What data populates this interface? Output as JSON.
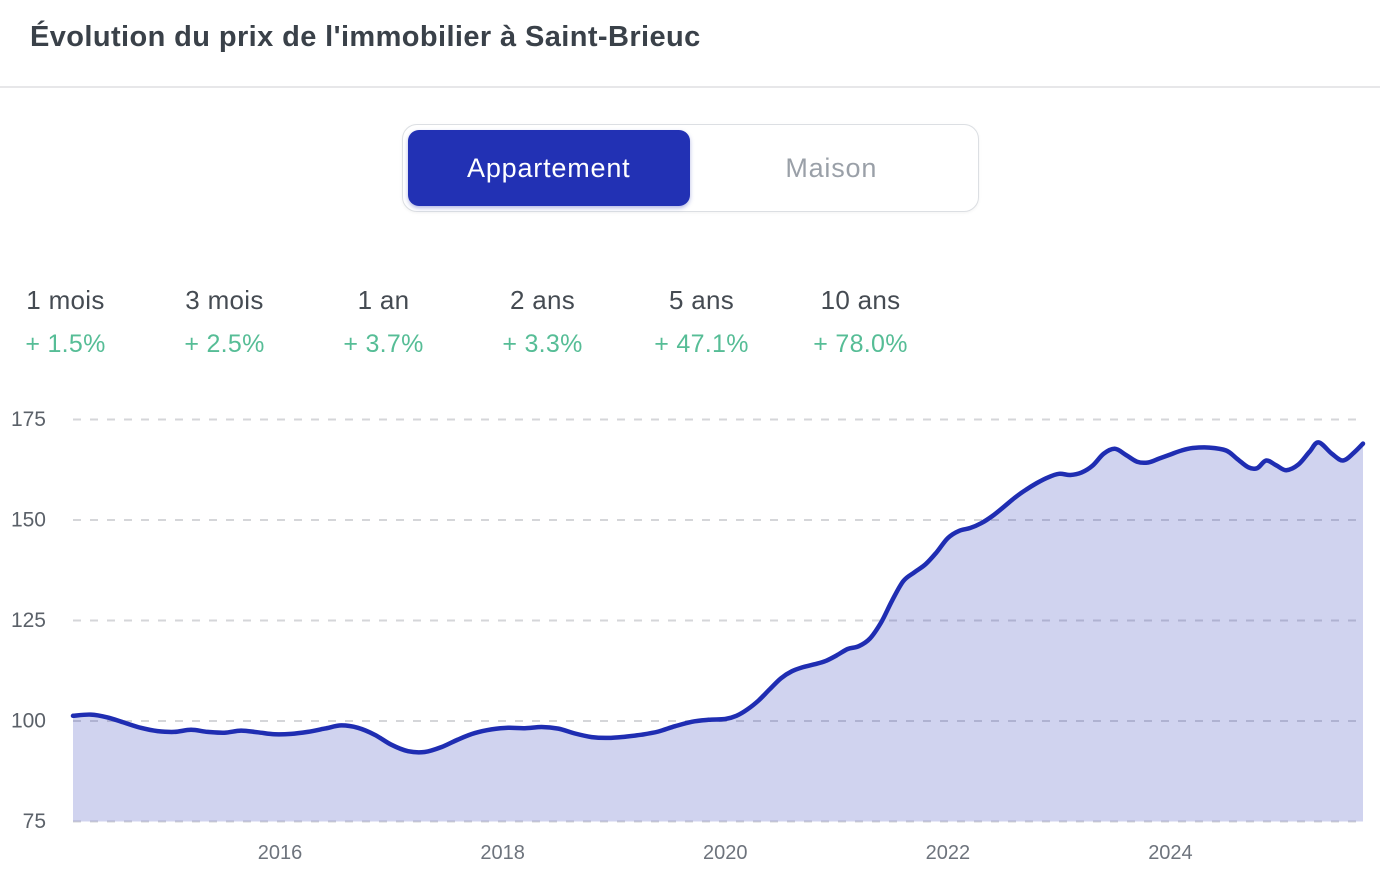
{
  "header": {
    "title": "Évolution du prix de l'immobilier à Saint-Brieuc"
  },
  "toggle": {
    "options": [
      {
        "label": "Appartement",
        "selected": true
      },
      {
        "label": "Maison",
        "selected": false
      }
    ],
    "selected_color": "#2231b4"
  },
  "stats": {
    "items": [
      {
        "label": "1 mois",
        "value": "+ 1.5%"
      },
      {
        "label": "3 mois",
        "value": "+ 2.5%"
      },
      {
        "label": "1 an",
        "value": "+ 3.7%"
      },
      {
        "label": "2 ans",
        "value": "+ 3.3%"
      },
      {
        "label": "5 ans",
        "value": "+ 47.1%"
      },
      {
        "label": "10 ans",
        "value": "+ 78.0%"
      }
    ],
    "value_color": "#56bd96"
  },
  "chart_data": {
    "type": "area",
    "title": "Évolution du prix de l'immobilier à Saint-Brieuc — Appartement (indice de prix)",
    "xlabel": "",
    "ylabel": "",
    "xlim": [
      2014.14,
      2025.73
    ],
    "ylim": [
      75,
      175
    ],
    "yticks": [
      75,
      100,
      125,
      150,
      175
    ],
    "xticks": [
      2016,
      2018,
      2020,
      2022,
      2024
    ],
    "grid": "horizontal-dashed",
    "legend": "none",
    "line_color": "#1f2db2",
    "fill_color": "rgba(31,45,178,0.21)",
    "grid_color": "#d5d6d9",
    "x": [
      2014.14,
      2014.3,
      2014.45,
      2014.6,
      2014.75,
      2014.9,
      2015.05,
      2015.2,
      2015.35,
      2015.5,
      2015.65,
      2015.8,
      2015.95,
      2016.1,
      2016.25,
      2016.4,
      2016.55,
      2016.7,
      2016.85,
      2017.0,
      2017.15,
      2017.3,
      2017.45,
      2017.6,
      2017.75,
      2017.9,
      2018.05,
      2018.2,
      2018.35,
      2018.5,
      2018.65,
      2018.8,
      2018.95,
      2019.1,
      2019.25,
      2019.4,
      2019.55,
      2019.7,
      2019.85,
      2020.0,
      2020.1,
      2020.2,
      2020.3,
      2020.4,
      2020.5,
      2020.6,
      2020.7,
      2020.8,
      2020.9,
      2021.0,
      2021.1,
      2021.2,
      2021.3,
      2021.4,
      2021.5,
      2021.6,
      2021.7,
      2021.8,
      2021.9,
      2022.0,
      2022.1,
      2022.2,
      2022.3,
      2022.4,
      2022.5,
      2022.6,
      2022.7,
      2022.8,
      2022.9,
      2023.0,
      2023.1,
      2023.2,
      2023.3,
      2023.4,
      2023.5,
      2023.6,
      2023.7,
      2023.8,
      2023.9,
      2024.0,
      2024.1,
      2024.2,
      2024.35,
      2024.5,
      2024.6,
      2024.7,
      2024.78,
      2024.86,
      2024.95,
      2025.04,
      2025.15,
      2025.25,
      2025.33,
      2025.45,
      2025.55,
      2025.65,
      2025.73
    ],
    "series": [
      {
        "name": "Appartement",
        "values": [
          101.3,
          101.6,
          100.9,
          99.6,
          98.3,
          97.5,
          97.3,
          97.8,
          97.3,
          97.1,
          97.6,
          97.2,
          96.7,
          96.8,
          97.3,
          98.1,
          98.9,
          98.3,
          96.6,
          94.1,
          92.5,
          92.3,
          93.5,
          95.4,
          97.0,
          97.9,
          98.3,
          98.2,
          98.5,
          98.1,
          96.9,
          96.0,
          95.8,
          96.1,
          96.6,
          97.4,
          98.7,
          99.8,
          100.3,
          100.5,
          101.3,
          102.9,
          105.1,
          107.9,
          110.6,
          112.4,
          113.4,
          114.1,
          114.9,
          116.3,
          117.9,
          118.6,
          120.5,
          124.5,
          130.0,
          134.8,
          137.0,
          139.0,
          142.0,
          145.5,
          147.3,
          148.0,
          149.2,
          151.0,
          153.2,
          155.5,
          157.5,
          159.2,
          160.6,
          161.5,
          161.2,
          161.8,
          163.5,
          166.5,
          167.7,
          166.2,
          164.5,
          164.3,
          165.3,
          166.3,
          167.3,
          167.9,
          168.0,
          167.3,
          165.2,
          163.1,
          162.9,
          164.8,
          163.6,
          162.4,
          163.8,
          167.0,
          169.3,
          166.5,
          164.8,
          166.8,
          169.0
        ]
      }
    ]
  }
}
